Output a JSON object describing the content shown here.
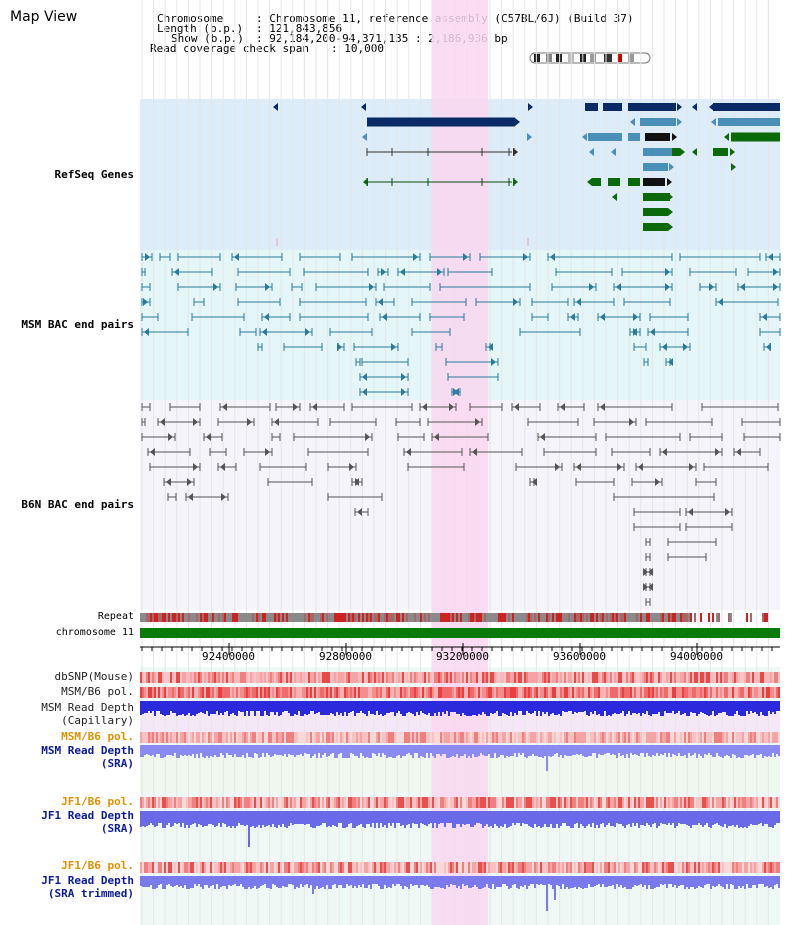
{
  "page": {
    "title": "Map View"
  },
  "header": {
    "chromosome_key": "Chromosome",
    "chromosome_value": ": Chromosome 11, reference assembly (C57BL/6J) (Build 37)",
    "length_key": "Length (b.p.)",
    "length_value": ": 121,843,856",
    "show_key": "Show (b.p.)",
    "show_value": ": 92,184,200-94,371,135 : 2,186,936 bp",
    "coverage_key": "Read coverage check span",
    "coverage_value": ": 10,000"
  },
  "tracks": {
    "refseq": {
      "label": "RefSeq Genes",
      "color": "#0d1a99"
    },
    "msm_bac": {
      "label": "MSM BAC end pairs",
      "color": "#0a5a7a"
    },
    "b6n_bac": {
      "label": "B6N BAC end pairs",
      "color": "#444444"
    },
    "repeat": {
      "label": "Repeat"
    },
    "chromosome": {
      "label": "chromosome 11"
    },
    "dbsnp": {
      "label": "dbSNP(Mouse)"
    },
    "msm_b6_pol": {
      "label": "MSM/B6 pol."
    },
    "msm_read_cap": {
      "line1": "MSM Read Depth",
      "line2": "(Capillary)"
    },
    "msm_b6_pol2": {
      "label": "MSM/B6 pol."
    },
    "msm_read_sra": {
      "line1": "MSM Read Depth",
      "line2": "(SRA)"
    },
    "jf1_b6_pol": {
      "label": "JF1/B6 pol."
    },
    "jf1_read_sra": {
      "line1": "JF1 Read Depth",
      "line2": "(SRA)"
    },
    "jf1_b6_pol2": {
      "label": "JF1/B6 pol."
    },
    "jf1_read_trim": {
      "line1": "JF1 Read Depth",
      "line2": "(SRA trimmed)"
    }
  },
  "axis": {
    "ticks": [
      "92400000",
      "92800000",
      "93200000",
      "93600000",
      "94000000"
    ]
  },
  "colors": {
    "refseq_bg": "#dcecf8",
    "msm_bg": "#e4f6f8",
    "b6n_bg": "#f4f4fa",
    "highlight": "#f9d7f0",
    "dark_blue": "#0a2a66",
    "steel_blue": "#4a8fb8",
    "green": "#0a6a0a",
    "msm_line": "#2a7a9a",
    "b6n_line": "#555555",
    "orange_label": "#e09000",
    "navy_label": "#0a1a99"
  }
}
